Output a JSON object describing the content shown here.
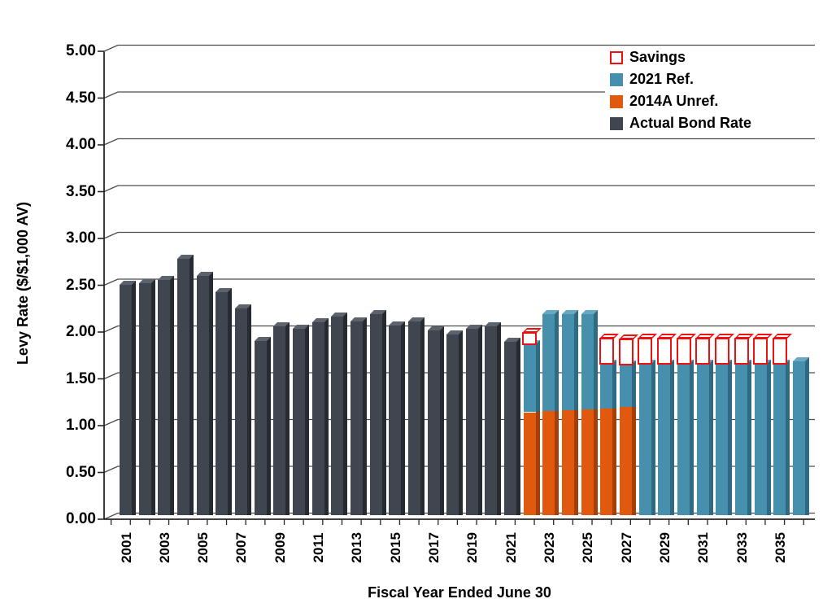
{
  "y_axis": {
    "title": "Levy Rate ($/$1,000 AV)",
    "ticks": [
      "0.00",
      "0.50",
      "1.00",
      "1.50",
      "2.00",
      "2.50",
      "3.00",
      "3.50",
      "4.00",
      "4.50",
      "5.00"
    ],
    "min": 0,
    "max": 5,
    "step": 0.5
  },
  "x_axis": {
    "title": "Fiscal Year Ended June 30",
    "labels": [
      "2001",
      "2003",
      "2005",
      "2007",
      "2009",
      "2011",
      "2013",
      "2015",
      "2017",
      "2019",
      "2021",
      "2023",
      "2025",
      "2027",
      "2029",
      "2031",
      "2033",
      "2035"
    ]
  },
  "legend": [
    {
      "label": "Savings",
      "swatch": "savings"
    },
    {
      "label": "2021 Ref.",
      "swatch": "teal"
    },
    {
      "label": "2014A Unref.",
      "swatch": "orange"
    },
    {
      "label": "Actual Bond Rate",
      "swatch": "gray"
    }
  ],
  "colors": {
    "gray": {
      "front": "#3F4650",
      "side": "#262A31",
      "cap": "#5C636D"
    },
    "teal": {
      "front": "#4690AE",
      "side": "#2E6A83",
      "cap": "#69A9BF"
    },
    "orange": {
      "front": "#E0590F",
      "side": "#A63F07",
      "cap": "#EB7D36"
    },
    "savings_red": "#EE1111",
    "gridline": "#4D4D4D",
    "axis": "#262626",
    "background": "#FFFFFF"
  },
  "chart_data": {
    "type": "bar",
    "stacked": true,
    "title": "",
    "xlabel": "Fiscal Year Ended June 30",
    "ylabel": "Levy Rate ($/$1,000 AV)",
    "ylim": [
      0,
      5
    ],
    "ytick_step": 0.5,
    "grid": "horizontal",
    "legend_position": "top-right-inside",
    "years": [
      2001,
      2002,
      2003,
      2004,
      2005,
      2006,
      2007,
      2008,
      2009,
      2010,
      2011,
      2012,
      2013,
      2014,
      2015,
      2016,
      2017,
      2018,
      2019,
      2020,
      2021,
      2022,
      2023,
      2024,
      2025,
      2026,
      2027,
      2028,
      2029,
      2030,
      2031,
      2032,
      2033,
      2034,
      2035,
      2036
    ],
    "series": [
      {
        "name": "Actual Bond Rate",
        "color_key": "gray",
        "style": "solid",
        "values": [
          2.46,
          2.48,
          2.51,
          2.74,
          2.56,
          2.38,
          2.21,
          1.86,
          2.02,
          1.99,
          2.06,
          2.12,
          2.07,
          2.15,
          2.03,
          2.07,
          1.97,
          1.93,
          1.99,
          2.02,
          1.85,
          null,
          null,
          null,
          null,
          null,
          null,
          null,
          null,
          null,
          null,
          null,
          null,
          null,
          null,
          null
        ]
      },
      {
        "name": "2014A Unref.",
        "color_key": "orange",
        "style": "solid",
        "values": [
          null,
          null,
          null,
          null,
          null,
          null,
          null,
          null,
          null,
          null,
          null,
          null,
          null,
          null,
          null,
          null,
          null,
          null,
          null,
          null,
          null,
          1.1,
          1.11,
          1.12,
          1.13,
          1.14,
          1.16,
          null,
          null,
          null,
          null,
          null,
          null,
          null,
          null,
          null
        ]
      },
      {
        "name": "2021 Ref.",
        "color_key": "teal",
        "style": "solid",
        "values": [
          null,
          null,
          null,
          null,
          null,
          null,
          null,
          null,
          null,
          null,
          null,
          null,
          null,
          null,
          null,
          null,
          null,
          null,
          null,
          null,
          null,
          0.73,
          1.04,
          1.03,
          1.02,
          0.48,
          0.45,
          1.62,
          1.62,
          1.62,
          1.62,
          1.62,
          1.62,
          1.62,
          1.62,
          1.64
        ]
      },
      {
        "name": "Savings",
        "color_key": "savings_red",
        "style": "outline-box",
        "values": [
          null,
          null,
          null,
          null,
          null,
          null,
          null,
          null,
          null,
          null,
          null,
          null,
          null,
          null,
          null,
          null,
          null,
          null,
          null,
          null,
          null,
          0.13,
          null,
          null,
          null,
          0.28,
          0.28,
          0.28,
          0.28,
          0.28,
          0.28,
          0.28,
          0.28,
          0.28,
          0.28,
          null
        ]
      }
    ]
  }
}
